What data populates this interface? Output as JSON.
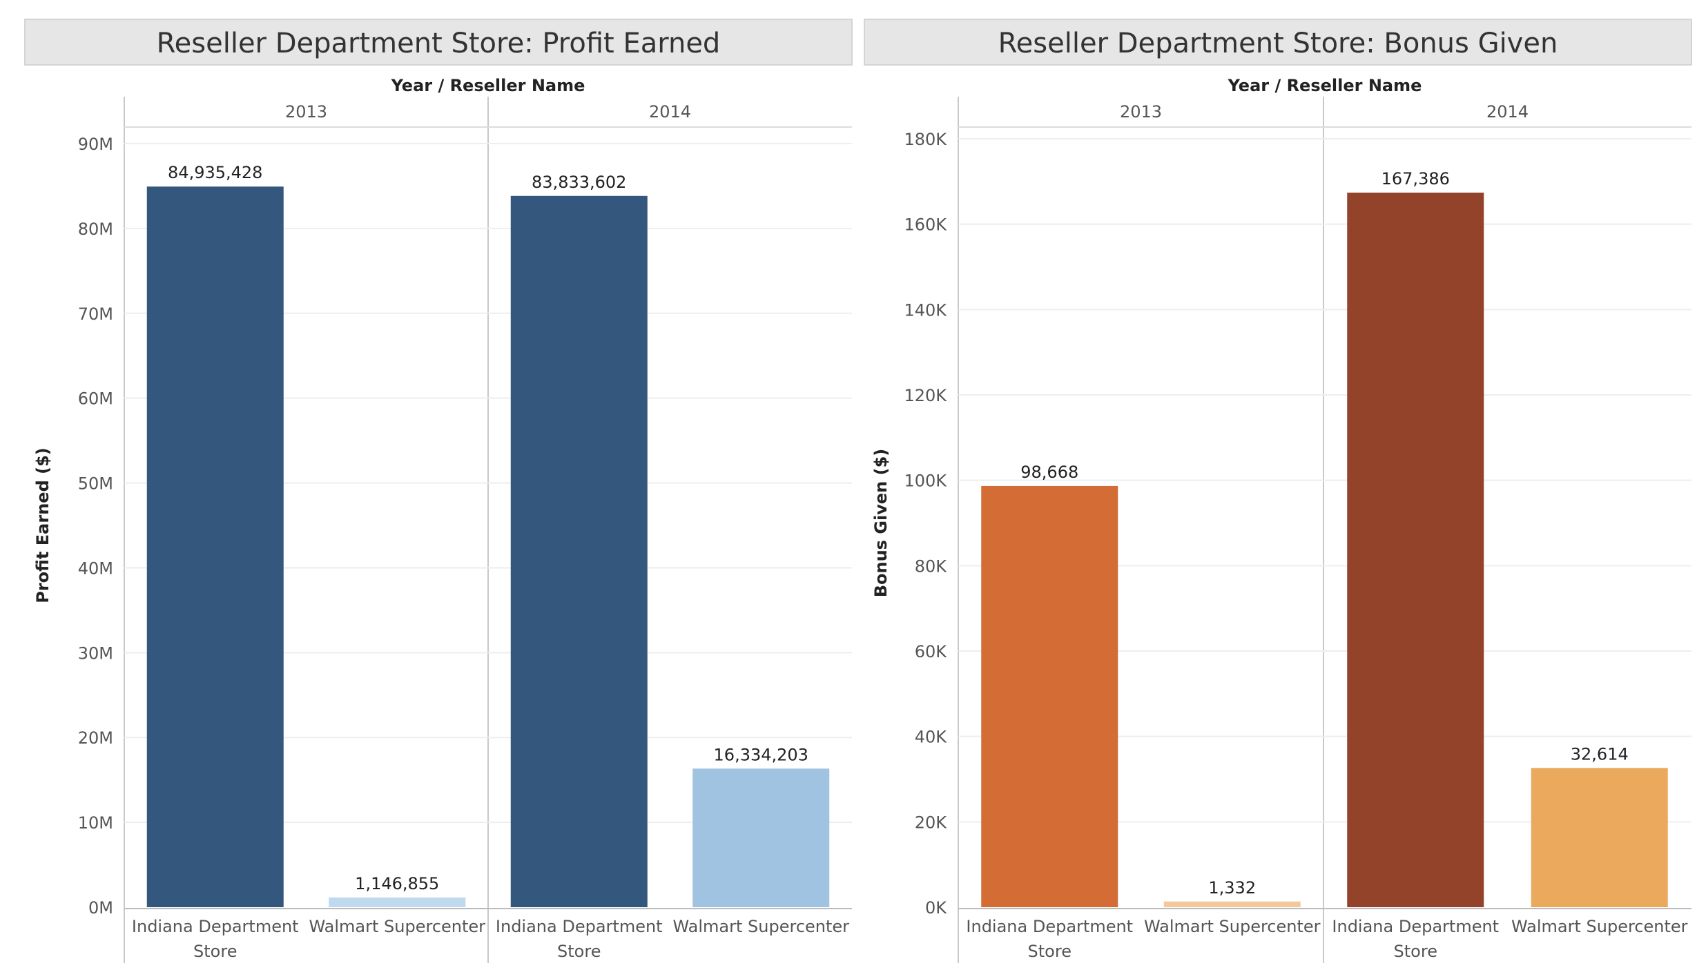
{
  "chart_data": [
    {
      "type": "bar",
      "title": "Reseller Department Store: Profit Earned",
      "column_header": "Year  /  Reseller Name",
      "ylabel": "Profit Earned ($)",
      "ylim": [
        0,
        90000000
      ],
      "yticks": [
        {
          "value": 0,
          "label": "0M"
        },
        {
          "value": 10000000,
          "label": "10M"
        },
        {
          "value": 20000000,
          "label": "20M"
        },
        {
          "value": 30000000,
          "label": "30M"
        },
        {
          "value": 40000000,
          "label": "40M"
        },
        {
          "value": 50000000,
          "label": "50M"
        },
        {
          "value": 60000000,
          "label": "60M"
        },
        {
          "value": 70000000,
          "label": "70M"
        },
        {
          "value": 80000000,
          "label": "80M"
        },
        {
          "value": 90000000,
          "label": "90M"
        }
      ],
      "groups": [
        {
          "year": "2013",
          "bars": [
            {
              "category": "Indiana Department Store",
              "value": 84935428,
              "label": "84,935,428",
              "color": "#34577e"
            },
            {
              "category": "Walmart Supercenter",
              "value": 1146855,
              "label": "1,146,855",
              "color": "#bfd9ee"
            }
          ]
        },
        {
          "year": "2014",
          "bars": [
            {
              "category": "Indiana Department Store",
              "value": 83833602,
              "label": "83,833,602",
              "color": "#34577e"
            },
            {
              "category": "Walmart Supercenter",
              "value": 16334203,
              "label": "16,334,203",
              "color": "#a0c3e1"
            }
          ]
        }
      ],
      "legend": "none",
      "grid": true
    },
    {
      "type": "bar",
      "title": "Reseller Department Store: Bonus Given",
      "column_header": "Year  /  Reseller Name",
      "ylabel": "Bonus Given ($)",
      "ylim": [
        0,
        180000
      ],
      "yticks": [
        {
          "value": 0,
          "label": "0K"
        },
        {
          "value": 20000,
          "label": "20K"
        },
        {
          "value": 40000,
          "label": "40K"
        },
        {
          "value": 60000,
          "label": "60K"
        },
        {
          "value": 80000,
          "label": "80K"
        },
        {
          "value": 100000,
          "label": "100K"
        },
        {
          "value": 120000,
          "label": "120K"
        },
        {
          "value": 140000,
          "label": "140K"
        },
        {
          "value": 160000,
          "label": "160K"
        },
        {
          "value": 180000,
          "label": "180K"
        }
      ],
      "groups": [
        {
          "year": "2013",
          "bars": [
            {
              "category": "Indiana Department Store",
              "value": 98668,
              "label": "98,668",
              "color": "#d46c35"
            },
            {
              "category": "Walmart Supercenter",
              "value": 1332,
              "label": "1,332",
              "color": "#f3c99a"
            }
          ]
        },
        {
          "year": "2014",
          "bars": [
            {
              "category": "Indiana Department Store",
              "value": 167386,
              "label": "167,386",
              "color": "#93432a"
            },
            {
              "category": "Walmart Supercenter",
              "value": 32614,
              "label": "32,614",
              "color": "#eba95d"
            }
          ]
        }
      ],
      "legend": "none",
      "grid": true
    }
  ]
}
